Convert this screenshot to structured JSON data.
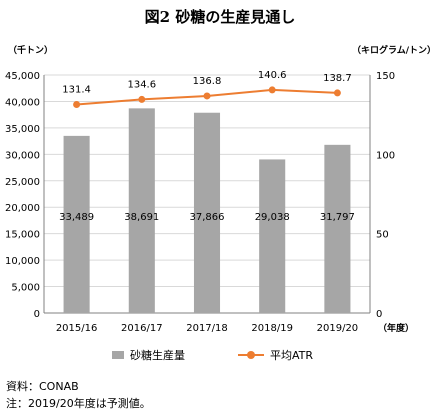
{
  "title": "図2 砂糖の生産見通し",
  "units": {
    "left": "（千トン）",
    "right": "（キログラム/トン）"
  },
  "colors": {
    "bar": "#a6a6a6",
    "line": "#ed7d31",
    "grid": "#d9d9d9",
    "axis": "#808080"
  },
  "chart_data": {
    "type": "bar",
    "categories": [
      "2015/16",
      "2016/17",
      "2017/18",
      "2018/19",
      "2019/20"
    ],
    "x_unit_label": "（年度）",
    "series": [
      {
        "name": "砂糖生産量",
        "type": "bar",
        "axis": "left",
        "values": [
          33489,
          38691,
          37866,
          29038,
          31797
        ],
        "labels": [
          "33,489",
          "38,691",
          "37,866",
          "29,038",
          "31,797"
        ]
      },
      {
        "name": "平均ATR",
        "type": "line",
        "axis": "right",
        "values": [
          131.4,
          134.6,
          136.8,
          140.6,
          138.7
        ],
        "labels": [
          "131.4",
          "134.6",
          "136.8",
          "140.6",
          "138.7"
        ]
      }
    ],
    "y_left": {
      "min": 0,
      "max": 45000,
      "step": 5000,
      "ticks": [
        "0",
        "5,000",
        "10,000",
        "15,000",
        "20,000",
        "25,000",
        "30,000",
        "35,000",
        "40,000",
        "45,000"
      ]
    },
    "y_right": {
      "min": 0,
      "max": 150,
      "step": 50,
      "ticks": [
        "0",
        "50",
        "100",
        "150"
      ]
    },
    "grid": true,
    "legend_position": "bottom"
  },
  "notes": [
    "資料：CONAB",
    "注：2019/20年度は予測値。"
  ]
}
